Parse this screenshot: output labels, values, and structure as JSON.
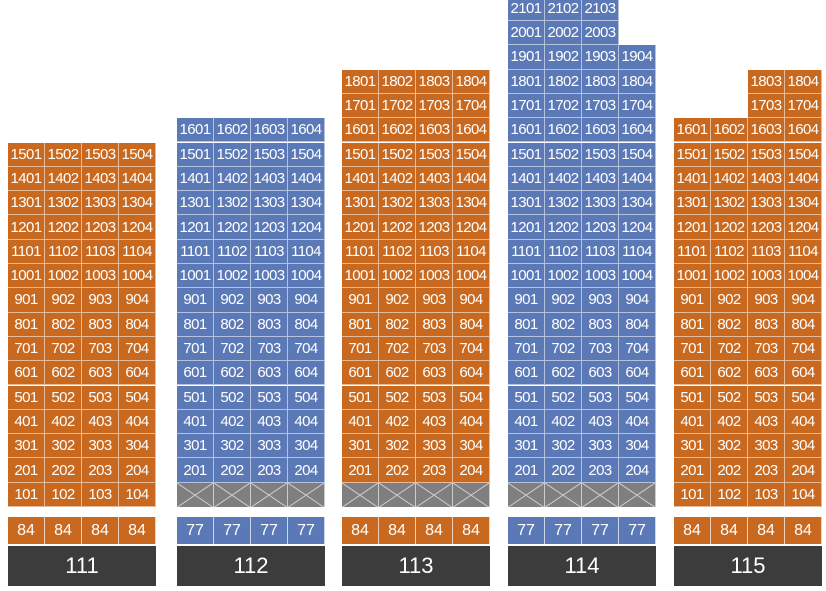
{
  "colors": {
    "orange": "#c8691f",
    "blue": "#5b79b6",
    "pilotis": "#7f7f7f",
    "label_bg": "#3c3c3c"
  },
  "buildings": [
    {
      "name": "111",
      "color": "orange",
      "pilotis": false,
      "areas": [
        "84",
        "84",
        "84",
        "84"
      ],
      "floors": [
        {
          "units": [
            "1501",
            "1502",
            "1503",
            "1504"
          ]
        },
        {
          "units": [
            "1401",
            "1402",
            "1403",
            "1404"
          ]
        },
        {
          "units": [
            "1301",
            "1302",
            "1303",
            "1304"
          ]
        },
        {
          "units": [
            "1201",
            "1202",
            "1203",
            "1204"
          ]
        },
        {
          "units": [
            "1101",
            "1102",
            "1103",
            "1104"
          ]
        },
        {
          "units": [
            "1001",
            "1002",
            "1003",
            "1004"
          ]
        },
        {
          "units": [
            "901",
            "902",
            "903",
            "904"
          ]
        },
        {
          "units": [
            "801",
            "802",
            "803",
            "804"
          ]
        },
        {
          "units": [
            "701",
            "702",
            "703",
            "704"
          ]
        },
        {
          "units": [
            "601",
            "602",
            "603",
            "604"
          ]
        },
        {
          "units": [
            "501",
            "502",
            "503",
            "504"
          ]
        },
        {
          "units": [
            "401",
            "402",
            "403",
            "404"
          ]
        },
        {
          "units": [
            "301",
            "302",
            "303",
            "304"
          ]
        },
        {
          "units": [
            "201",
            "202",
            "203",
            "204"
          ]
        },
        {
          "units": [
            "101",
            "102",
            "103",
            "104"
          ]
        }
      ]
    },
    {
      "name": "112",
      "color": "blue",
      "pilotis": true,
      "areas": [
        "77",
        "77",
        "77",
        "77"
      ],
      "floors": [
        {
          "units": [
            "1601",
            "1602",
            "1603",
            "1604"
          ]
        },
        {
          "units": [
            "1501",
            "1502",
            "1503",
            "1504"
          ]
        },
        {
          "units": [
            "1401",
            "1402",
            "1403",
            "1404"
          ]
        },
        {
          "units": [
            "1301",
            "1302",
            "1303",
            "1304"
          ]
        },
        {
          "units": [
            "1201",
            "1202",
            "1203",
            "1204"
          ]
        },
        {
          "units": [
            "1101",
            "1102",
            "1103",
            "1104"
          ]
        },
        {
          "units": [
            "1001",
            "1002",
            "1003",
            "1004"
          ]
        },
        {
          "units": [
            "901",
            "902",
            "903",
            "904"
          ]
        },
        {
          "units": [
            "801",
            "802",
            "803",
            "804"
          ]
        },
        {
          "units": [
            "701",
            "702",
            "703",
            "704"
          ]
        },
        {
          "units": [
            "601",
            "602",
            "603",
            "604"
          ]
        },
        {
          "units": [
            "501",
            "502",
            "503",
            "504"
          ]
        },
        {
          "units": [
            "401",
            "402",
            "403",
            "404"
          ]
        },
        {
          "units": [
            "301",
            "302",
            "303",
            "304"
          ]
        },
        {
          "units": [
            "201",
            "202",
            "203",
            "204"
          ]
        }
      ]
    },
    {
      "name": "113",
      "color": "orange",
      "pilotis": true,
      "areas": [
        "84",
        "84",
        "84",
        "84"
      ],
      "floors": [
        {
          "units": [
            "1801",
            "1802",
            "1803",
            "1804"
          ]
        },
        {
          "units": [
            "1701",
            "1702",
            "1703",
            "1704"
          ]
        },
        {
          "units": [
            "1601",
            "1602",
            "1603",
            "1604"
          ]
        },
        {
          "units": [
            "1501",
            "1502",
            "1503",
            "1504"
          ]
        },
        {
          "units": [
            "1401",
            "1402",
            "1403",
            "1404"
          ]
        },
        {
          "units": [
            "1301",
            "1302",
            "1303",
            "1304"
          ]
        },
        {
          "units": [
            "1201",
            "1202",
            "1203",
            "1204"
          ]
        },
        {
          "units": [
            "1101",
            "1102",
            "1103",
            "1104"
          ]
        },
        {
          "units": [
            "1001",
            "1002",
            "1003",
            "1004"
          ]
        },
        {
          "units": [
            "901",
            "902",
            "903",
            "904"
          ]
        },
        {
          "units": [
            "801",
            "802",
            "803",
            "804"
          ]
        },
        {
          "units": [
            "701",
            "702",
            "703",
            "704"
          ]
        },
        {
          "units": [
            "601",
            "602",
            "603",
            "604"
          ]
        },
        {
          "units": [
            "501",
            "502",
            "503",
            "504"
          ]
        },
        {
          "units": [
            "401",
            "402",
            "403",
            "404"
          ]
        },
        {
          "units": [
            "301",
            "302",
            "303",
            "304"
          ]
        },
        {
          "units": [
            "201",
            "202",
            "203",
            "204"
          ]
        }
      ]
    },
    {
      "name": "114",
      "color": "blue",
      "pilotis": true,
      "areas": [
        "77",
        "77",
        "77",
        "77"
      ],
      "floors": [
        {
          "units": [
            "2101",
            "2102",
            "2103"
          ]
        },
        {
          "units": [
            "2001",
            "2002",
            "2003"
          ]
        },
        {
          "units": [
            "1901",
            "1902",
            "1903",
            "1904"
          ]
        },
        {
          "units": [
            "1801",
            "1802",
            "1803",
            "1804"
          ]
        },
        {
          "units": [
            "1701",
            "1702",
            "1703",
            "1704"
          ]
        },
        {
          "units": [
            "1601",
            "1602",
            "1603",
            "1604"
          ]
        },
        {
          "units": [
            "1501",
            "1502",
            "1503",
            "1504"
          ]
        },
        {
          "units": [
            "1401",
            "1402",
            "1403",
            "1404"
          ]
        },
        {
          "units": [
            "1301",
            "1302",
            "1303",
            "1304"
          ]
        },
        {
          "units": [
            "1201",
            "1202",
            "1203",
            "1204"
          ]
        },
        {
          "units": [
            "1101",
            "1102",
            "1103",
            "1104"
          ]
        },
        {
          "units": [
            "1001",
            "1002",
            "1003",
            "1004"
          ]
        },
        {
          "units": [
            "901",
            "902",
            "903",
            "904"
          ]
        },
        {
          "units": [
            "801",
            "802",
            "803",
            "804"
          ]
        },
        {
          "units": [
            "701",
            "702",
            "703",
            "704"
          ]
        },
        {
          "units": [
            "601",
            "602",
            "603",
            "604"
          ]
        },
        {
          "units": [
            "501",
            "502",
            "503",
            "504"
          ]
        },
        {
          "units": [
            "401",
            "402",
            "403",
            "404"
          ]
        },
        {
          "units": [
            "301",
            "302",
            "303",
            "304"
          ]
        },
        {
          "units": [
            "201",
            "202",
            "203",
            "204"
          ]
        }
      ]
    },
    {
      "name": "115",
      "color": "orange",
      "pilotis": false,
      "areas": [
        "84",
        "84",
        "84",
        "84"
      ],
      "floors": [
        {
          "units": [
            "1803",
            "1804"
          ],
          "start_col": 2
        },
        {
          "units": [
            "1703",
            "1704"
          ],
          "start_col": 2
        },
        {
          "units": [
            "1601",
            "1602",
            "1603",
            "1604"
          ]
        },
        {
          "units": [
            "1501",
            "1502",
            "1503",
            "1504"
          ]
        },
        {
          "units": [
            "1401",
            "1402",
            "1403",
            "1404"
          ]
        },
        {
          "units": [
            "1301",
            "1302",
            "1303",
            "1304"
          ]
        },
        {
          "units": [
            "1201",
            "1202",
            "1203",
            "1204"
          ]
        },
        {
          "units": [
            "1101",
            "1102",
            "1103",
            "1104"
          ]
        },
        {
          "units": [
            "1001",
            "1002",
            "1003",
            "1004"
          ]
        },
        {
          "units": [
            "901",
            "902",
            "903",
            "904"
          ]
        },
        {
          "units": [
            "801",
            "802",
            "803",
            "804"
          ]
        },
        {
          "units": [
            "701",
            "702",
            "703",
            "704"
          ]
        },
        {
          "units": [
            "601",
            "602",
            "603",
            "604"
          ]
        },
        {
          "units": [
            "501",
            "502",
            "503",
            "504"
          ]
        },
        {
          "units": [
            "401",
            "402",
            "403",
            "404"
          ]
        },
        {
          "units": [
            "301",
            "302",
            "303",
            "304"
          ]
        },
        {
          "units": [
            "201",
            "202",
            "203",
            "204"
          ]
        },
        {
          "units": [
            "101",
            "102",
            "103",
            "104"
          ]
        }
      ]
    }
  ]
}
